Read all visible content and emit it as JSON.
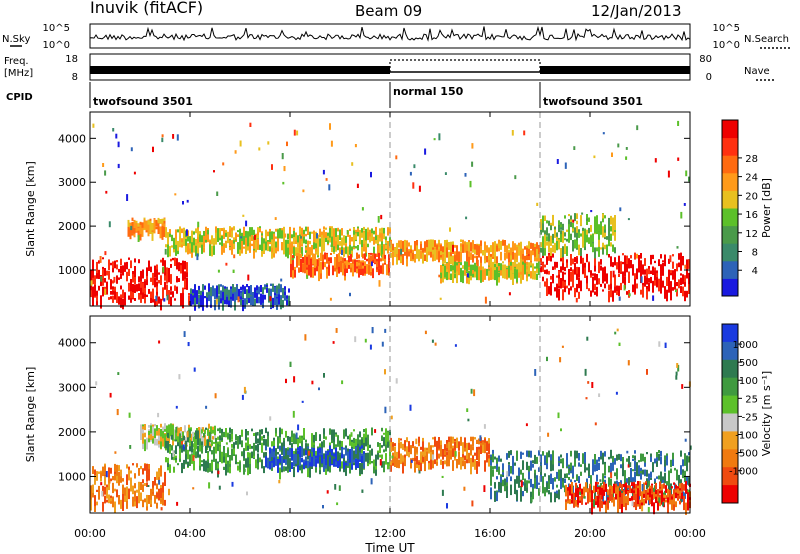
{
  "header": {
    "station": "Inuvik (fitACF)",
    "beam": "Beam 09",
    "date": "12/Jan/2013"
  },
  "strips": {
    "nsky_label": "N.Sky",
    "nsky_ticks": [
      "10^5",
      "10^0"
    ],
    "nsearch_label": "N.Search",
    "nsearch_ticks": [
      "10^5",
      "10^0"
    ],
    "freq_label_1": "Freq.",
    "freq_label_2": "[MHz]",
    "freq_ticks": [
      "18",
      "8"
    ],
    "nave_label": "Nave",
    "nave_ticks": [
      "80",
      "0"
    ],
    "cpid_label": "CPID",
    "cpid_segments": [
      {
        "label": "twofsound 3501",
        "start_hour": 0,
        "end_hour": 12
      },
      {
        "label": "normal 150",
        "start_hour": 12,
        "end_hour": 18
      },
      {
        "label": "twofsound 3501",
        "start_hour": 18,
        "end_hour": 24
      }
    ]
  },
  "chart_data": [
    {
      "type": "heatmap",
      "title": "",
      "xlabel": "Time UT",
      "ylabel": "Slant Range [km]",
      "x_ticks": [
        "00:00",
        "04:00",
        "08:00",
        "12:00",
        "16:00",
        "20:00",
        "00:00"
      ],
      "y_ticks": [
        1000,
        2000,
        3000,
        4000
      ],
      "xlim_hours": [
        0,
        24
      ],
      "ylim_km": [
        180,
        4600
      ],
      "colorbar": {
        "label": "Power [dB]",
        "ticks": [
          "4",
          "8",
          "12",
          "16",
          "20",
          "24",
          "28"
        ],
        "colors": [
          "#1a1ae0",
          "#2d63b8",
          "#3a8a6a",
          "#4a9a4a",
          "#5cc02a",
          "#e8c020",
          "#ff9a1a",
          "#ff6a10",
          "#ff3010",
          "#ee0000"
        ]
      },
      "regions": [
        {
          "t0": 0.0,
          "t1": 4.0,
          "r0": 300,
          "r1": 1300,
          "level": 9
        },
        {
          "t0": 1.5,
          "t1": 3.0,
          "r0": 1900,
          "r1": 2200,
          "level": 6
        },
        {
          "t0": 3.0,
          "t1": 12.0,
          "r0": 1500,
          "r1": 2000,
          "level": 5
        },
        {
          "t0": 4.0,
          "t1": 8.0,
          "r0": 300,
          "r1": 700,
          "level": 1
        },
        {
          "t0": 8.0,
          "t1": 12.0,
          "r0": 1000,
          "r1": 1400,
          "level": 7
        },
        {
          "t0": 12.0,
          "t1": 18.0,
          "r0": 1300,
          "r1": 1700,
          "level": 6
        },
        {
          "t0": 14.0,
          "t1": 18.0,
          "r0": 900,
          "r1": 1200,
          "level": 5
        },
        {
          "t0": 18.0,
          "t1": 24.0,
          "r0": 500,
          "r1": 1400,
          "level": 9
        },
        {
          "t0": 18.0,
          "t1": 21.0,
          "r0": 1500,
          "r1": 2300,
          "level": 4
        }
      ]
    },
    {
      "type": "heatmap",
      "title": "",
      "xlabel": "Time UT",
      "ylabel": "Slant Range [km]",
      "x_ticks": [
        "00:00",
        "04:00",
        "08:00",
        "12:00",
        "16:00",
        "20:00",
        "00:00"
      ],
      "y_ticks": [
        1000,
        2000,
        3000,
        4000
      ],
      "xlim_hours": [
        0,
        24
      ],
      "ylim_km": [
        180,
        4600
      ],
      "colorbar": {
        "label": "Velocity [m s⁻¹]",
        "ticks": [
          "1000",
          "500",
          "100",
          "25",
          "-25",
          "-100",
          "-500",
          "-1000"
        ],
        "colors": [
          "#1a3ae0",
          "#2d63b8",
          "#2e7a50",
          "#3f9a3f",
          "#5cc02a",
          "#c8c8c8",
          "#f0a020",
          "#f07a10",
          "#f04a10",
          "#ee0000"
        ]
      },
      "regions": [
        {
          "t0": 0.0,
          "t1": 3.0,
          "r0": 400,
          "r1": 1300,
          "level": 7
        },
        {
          "t0": 2.0,
          "t1": 5.0,
          "r0": 1800,
          "r1": 2200,
          "level": 5
        },
        {
          "t0": 3.0,
          "t1": 12.0,
          "r0": 1200,
          "r1": 2100,
          "level": 3
        },
        {
          "t0": 7.0,
          "t1": 11.0,
          "r0": 1300,
          "r1": 1700,
          "level": 1
        },
        {
          "t0": 12.0,
          "t1": 16.0,
          "r0": 1300,
          "r1": 1900,
          "level": 7
        },
        {
          "t0": 16.0,
          "t1": 24.0,
          "r0": 600,
          "r1": 1600,
          "level": 2
        },
        {
          "t0": 19.0,
          "t1": 24.0,
          "r0": 400,
          "r1": 900,
          "level": 8
        }
      ]
    }
  ]
}
